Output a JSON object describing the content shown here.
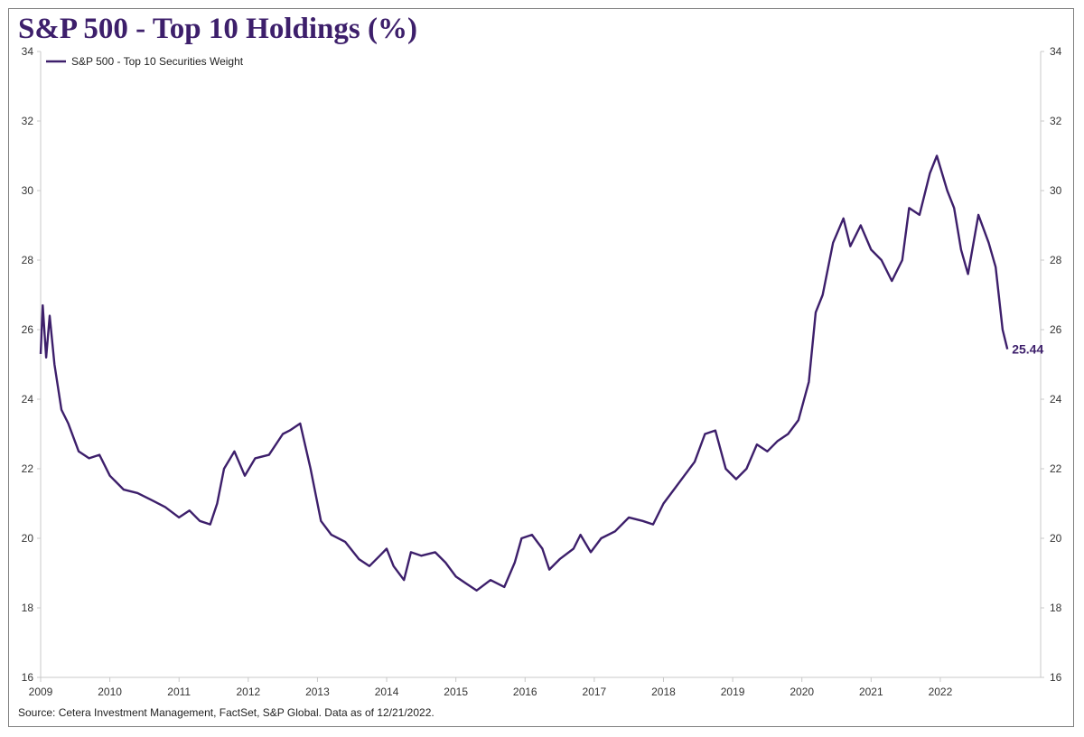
{
  "chart_data": {
    "type": "line",
    "title": "S&P 500 - Top 10 Holdings (%)",
    "source": "Source: Cetera Investment Management, FactSet, S&P Global. Data as of 12/21/2022.",
    "series": [
      {
        "name": "S&P 500 - Top 10 Securities Weight",
        "color": "#3d1f6b",
        "points": [
          [
            2009.0,
            25.3
          ],
          [
            2009.03,
            26.7
          ],
          [
            2009.08,
            25.2
          ],
          [
            2009.13,
            26.4
          ],
          [
            2009.2,
            25.0
          ],
          [
            2009.3,
            23.7
          ],
          [
            2009.4,
            23.3
          ],
          [
            2009.55,
            22.5
          ],
          [
            2009.7,
            22.3
          ],
          [
            2009.85,
            22.4
          ],
          [
            2010.0,
            21.8
          ],
          [
            2010.2,
            21.4
          ],
          [
            2010.4,
            21.3
          ],
          [
            2010.6,
            21.1
          ],
          [
            2010.8,
            20.9
          ],
          [
            2011.0,
            20.6
          ],
          [
            2011.15,
            20.8
          ],
          [
            2011.3,
            20.5
          ],
          [
            2011.45,
            20.4
          ],
          [
            2011.55,
            21.0
          ],
          [
            2011.65,
            22.0
          ],
          [
            2011.8,
            22.5
          ],
          [
            2011.95,
            21.8
          ],
          [
            2012.1,
            22.3
          ],
          [
            2012.3,
            22.4
          ],
          [
            2012.5,
            23.0
          ],
          [
            2012.6,
            23.1
          ],
          [
            2012.75,
            23.3
          ],
          [
            2012.9,
            22.0
          ],
          [
            2013.05,
            20.5
          ],
          [
            2013.2,
            20.1
          ],
          [
            2013.4,
            19.9
          ],
          [
            2013.6,
            19.4
          ],
          [
            2013.75,
            19.2
          ],
          [
            2013.9,
            19.5
          ],
          [
            2014.0,
            19.7
          ],
          [
            2014.1,
            19.2
          ],
          [
            2014.25,
            18.8
          ],
          [
            2014.35,
            19.6
          ],
          [
            2014.5,
            19.5
          ],
          [
            2014.7,
            19.6
          ],
          [
            2014.85,
            19.3
          ],
          [
            2015.0,
            18.9
          ],
          [
            2015.15,
            18.7
          ],
          [
            2015.3,
            18.5
          ],
          [
            2015.5,
            18.8
          ],
          [
            2015.7,
            18.6
          ],
          [
            2015.85,
            19.3
          ],
          [
            2015.95,
            20.0
          ],
          [
            2016.1,
            20.1
          ],
          [
            2016.25,
            19.7
          ],
          [
            2016.35,
            19.1
          ],
          [
            2016.5,
            19.4
          ],
          [
            2016.7,
            19.7
          ],
          [
            2016.8,
            20.1
          ],
          [
            2016.95,
            19.6
          ],
          [
            2017.1,
            20.0
          ],
          [
            2017.3,
            20.2
          ],
          [
            2017.5,
            20.6
          ],
          [
            2017.7,
            20.5
          ],
          [
            2017.85,
            20.4
          ],
          [
            2018.0,
            21.0
          ],
          [
            2018.15,
            21.4
          ],
          [
            2018.3,
            21.8
          ],
          [
            2018.45,
            22.2
          ],
          [
            2018.6,
            23.0
          ],
          [
            2018.75,
            23.1
          ],
          [
            2018.9,
            22.0
          ],
          [
            2019.05,
            21.7
          ],
          [
            2019.2,
            22.0
          ],
          [
            2019.35,
            22.7
          ],
          [
            2019.5,
            22.5
          ],
          [
            2019.65,
            22.8
          ],
          [
            2019.8,
            23.0
          ],
          [
            2019.95,
            23.4
          ],
          [
            2020.1,
            24.5
          ],
          [
            2020.2,
            26.5
          ],
          [
            2020.3,
            27.0
          ],
          [
            2020.45,
            28.5
          ],
          [
            2020.6,
            29.2
          ],
          [
            2020.7,
            28.4
          ],
          [
            2020.85,
            29.0
          ],
          [
            2021.0,
            28.3
          ],
          [
            2021.15,
            28.0
          ],
          [
            2021.3,
            27.4
          ],
          [
            2021.45,
            28.0
          ],
          [
            2021.55,
            29.5
          ],
          [
            2021.7,
            29.3
          ],
          [
            2021.85,
            30.5
          ],
          [
            2021.95,
            31.0
          ],
          [
            2022.1,
            30.0
          ],
          [
            2022.2,
            29.5
          ],
          [
            2022.3,
            28.3
          ],
          [
            2022.4,
            27.6
          ],
          [
            2022.55,
            29.3
          ],
          [
            2022.7,
            28.5
          ],
          [
            2022.8,
            27.8
          ],
          [
            2022.9,
            26.0
          ],
          [
            2022.97,
            25.44
          ]
        ]
      }
    ],
    "last_value_label": "25.44",
    "xlabel": "",
    "ylabel": "",
    "xlim": [
      2009,
      2023.45
    ],
    "ylim": [
      16,
      34
    ],
    "x_ticks": [
      "2009",
      "2010",
      "2011",
      "2012",
      "2013",
      "2014",
      "2015",
      "2016",
      "2017",
      "2018",
      "2019",
      "2020",
      "2021",
      "2022"
    ],
    "y_ticks": [
      16,
      18,
      20,
      22,
      24,
      26,
      28,
      30,
      32,
      34
    ],
    "y_axis_both_sides": true,
    "grid": false,
    "legend_position": "top-left"
  }
}
